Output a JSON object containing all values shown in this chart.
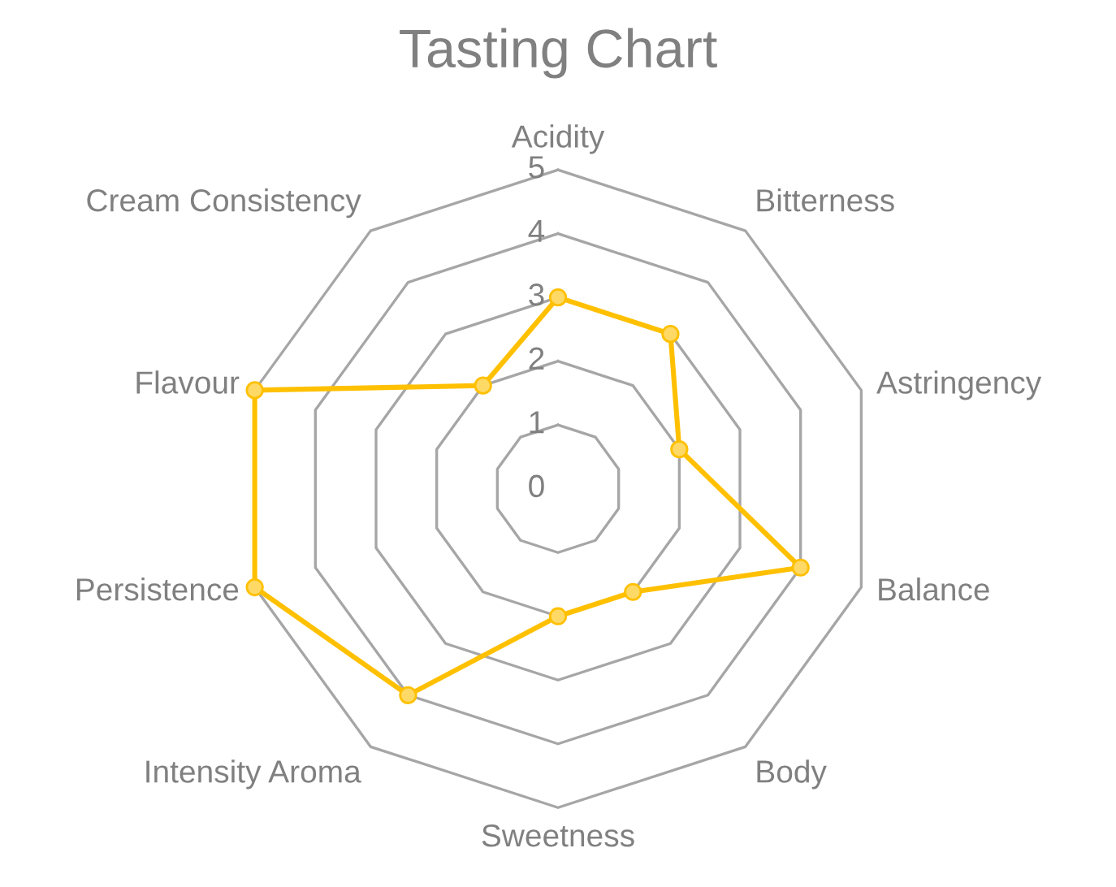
{
  "chart_data": {
    "type": "radar",
    "title": "Tasting Chart",
    "categories": [
      "Acidity",
      "Bitterness",
      "Astringency",
      "Balance",
      "Body",
      "Sweetness",
      "Intensity Aroma",
      "Persistence",
      "Flavour",
      "Cream Consistency"
    ],
    "series": [
      {
        "color": "#ffc000",
        "values": [
          3,
          3,
          2,
          4,
          2,
          2,
          4,
          5,
          5,
          2
        ]
      }
    ],
    "ylim": [
      0,
      5
    ],
    "yticks": [
      0,
      1,
      2,
      3,
      4,
      5
    ],
    "grid": true,
    "marker": "circle",
    "line_style": "solid"
  }
}
